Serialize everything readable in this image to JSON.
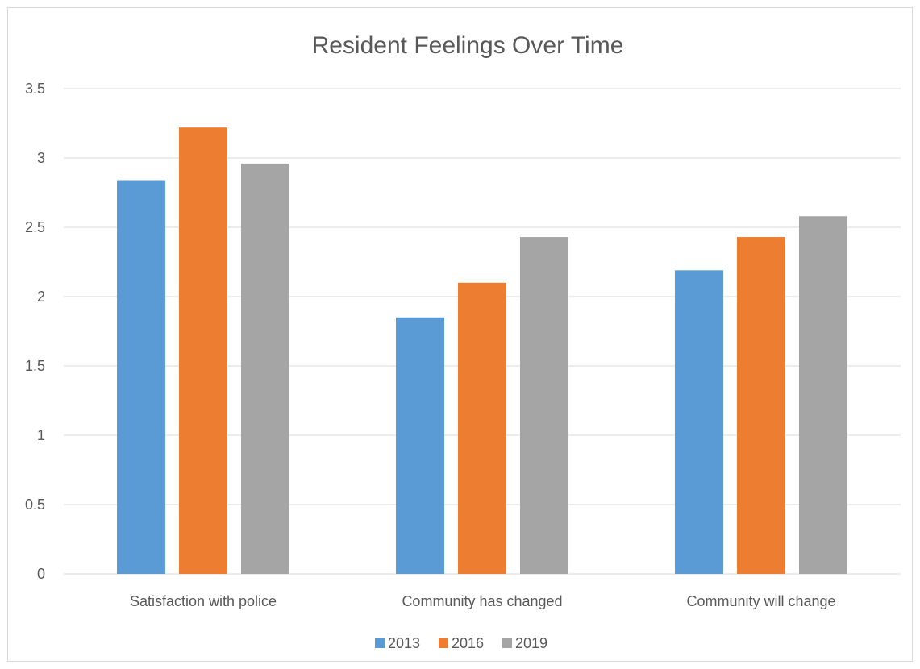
{
  "chart_data": {
    "type": "bar",
    "title": "Resident Feelings Over Time",
    "xlabel": "",
    "ylabel": "",
    "categories": [
      "Satisfaction with police",
      "Community has changed",
      "Community will change"
    ],
    "series": [
      {
        "name": "2013",
        "color": "#5b9bd5",
        "values": [
          2.84,
          1.85,
          2.19
        ]
      },
      {
        "name": "2016",
        "color": "#ed7d31",
        "values": [
          3.22,
          2.1,
          2.43
        ]
      },
      {
        "name": "2019",
        "color": "#a5a5a5",
        "values": [
          2.96,
          2.43,
          2.58
        ]
      }
    ],
    "ylim": [
      0,
      3.5
    ],
    "yticks": [
      "0",
      "0.5",
      "1",
      "1.5",
      "2",
      "2.5",
      "3",
      "3.5"
    ],
    "grid": true,
    "legend_position": "bottom"
  }
}
